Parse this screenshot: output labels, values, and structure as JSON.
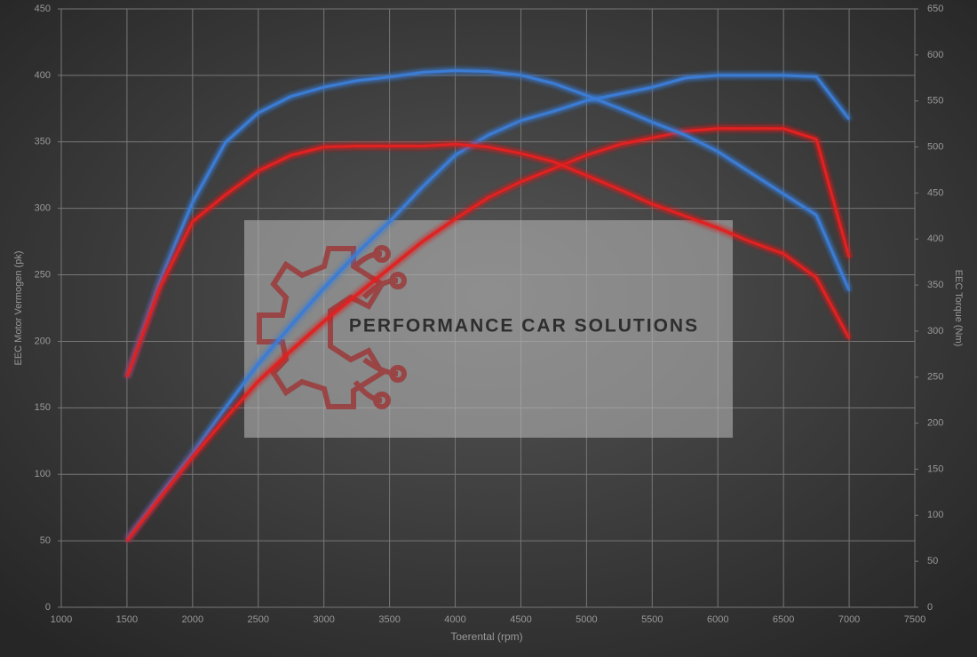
{
  "chart_data": {
    "type": "line",
    "xlabel": "Toerental (rpm)",
    "ylabel": "EEC Motor Vermogen (pk)",
    "y2label": "EEC Torque (Nm)",
    "watermark": "PERFORMANCE CAR SOLUTIONS",
    "x": [
      1500,
      1750,
      2000,
      2250,
      2500,
      2750,
      3000,
      3250,
      3500,
      3750,
      4000,
      4250,
      4500,
      4750,
      5000,
      5250,
      5500,
      5750,
      6000,
      6250,
      6500,
      6750,
      7000
    ],
    "series": [
      {
        "color": "#3a7bd5",
        "values": [
          51,
          84,
          116,
          150,
          183,
          212,
          240,
          266,
          290,
          316,
          340,
          355,
          366,
          373,
          381,
          386,
          391,
          398,
          400,
          400,
          400,
          399,
          367
        ]
      },
      {
        "color": "#e02020",
        "values": [
          50,
          82,
          113,
          142,
          170,
          193,
          215,
          235,
          255,
          275,
          292,
          308,
          320,
          330,
          340,
          348,
          353,
          358,
          360,
          360,
          360,
          352,
          263
        ]
      },
      {
        "color": "#3a7bd5",
        "axis": "y2",
        "values": [
          250,
          354,
          440,
          505,
          537,
          555,
          565,
          572,
          576,
          581,
          583,
          582,
          578,
          569,
          556,
          542,
          527,
          513,
          495,
          472,
          449,
          426,
          344
        ]
      },
      {
        "color": "#e02020",
        "axis": "y2",
        "values": [
          250,
          347,
          419,
          448,
          474,
          491,
          500,
          501,
          501,
          501,
          503,
          500,
          493,
          484,
          469,
          454,
          438,
          425,
          412,
          397,
          384,
          358,
          292
        ]
      }
    ],
    "xlim": [
      1000,
      7500
    ],
    "xticks": [
      1000,
      1500,
      2000,
      2500,
      3000,
      3500,
      4000,
      4500,
      5000,
      5500,
      6000,
      6500,
      7000,
      7500
    ],
    "ylim": [
      0,
      450
    ],
    "yticks": [
      0,
      50,
      100,
      150,
      200,
      250,
      300,
      350,
      400,
      450
    ],
    "y2lim": [
      0,
      650
    ],
    "y2ticks": [
      0,
      50,
      100,
      150,
      200,
      250,
      300,
      350,
      400,
      450,
      500,
      550,
      600,
      650
    ],
    "grid": true
  }
}
